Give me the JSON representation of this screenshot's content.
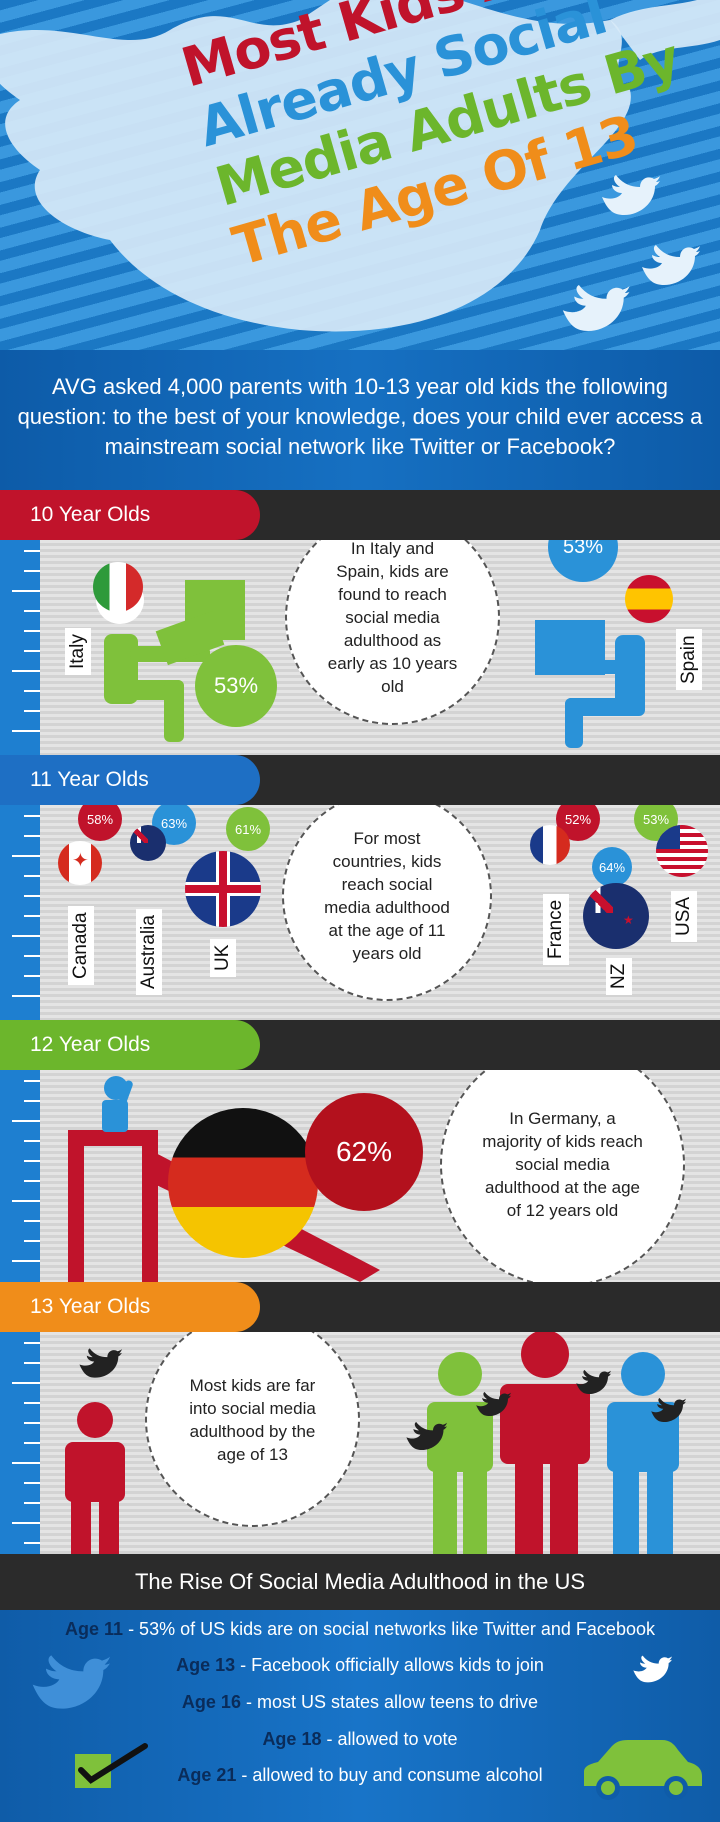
{
  "title": {
    "line1": "Most Kids Are",
    "line2": "Already Social",
    "line3": "Media Adults By",
    "line4": "The Age Of 13"
  },
  "intro": {
    "text": "AVG asked 4,000 parents with 10-13 year old kids the following question: to the best of your knowledge, does your child ever access a mainstream social network like Twitter or Facebook?"
  },
  "sections": {
    "ten": {
      "label": "10 Year Olds",
      "bubble": "In Italy and Spain, kids are found to reach social media adulthood as early as 10 years old",
      "italy": {
        "country": "Italy",
        "pct": "53%"
      },
      "spain": {
        "country": "Spain",
        "pct": "53%"
      }
    },
    "eleven": {
      "label": "11 Year Olds",
      "bubble": "For most countries, kids reach social media adulthood at the age of 11 years old",
      "countries": [
        {
          "name": "Canada",
          "pct": "58%"
        },
        {
          "name": "Australia",
          "pct": "63%"
        },
        {
          "name": "UK",
          "pct": "61%"
        },
        {
          "name": "France",
          "pct": "52%"
        },
        {
          "name": "NZ",
          "pct": "64%"
        },
        {
          "name": "USA",
          "pct": "53%"
        }
      ]
    },
    "twelve": {
      "label": "12 Year Olds",
      "bubble": "In Germany, a majority of kids reach social media adulthood at the age of 12 years old",
      "germany_pct": "62%"
    },
    "thirteen": {
      "label": "13 Year Olds",
      "bubble": "Most kids are far into social media adulthood by the age of 13"
    }
  },
  "us": {
    "heading": "The Rise Of Social Media Adulthood in the US",
    "rows": [
      {
        "age": "Age 11",
        "text": " - 53% of US kids are on social networks like Twitter and Facebook"
      },
      {
        "age": "Age 13",
        "text": " - Facebook officially allows kids to join"
      },
      {
        "age": "Age 16",
        "text": " - most US states allow teens to drive"
      },
      {
        "age": "Age 18",
        "text": " - allowed to vote"
      },
      {
        "age": "Age 21",
        "text": " - allowed to buy and consume alcohol"
      }
    ]
  },
  "colors": {
    "red": "#c0132b",
    "blue": "#2a92d8",
    "green": "#6cb62c",
    "orange": "#f08d1a",
    "dark": "#2a2a2a"
  }
}
